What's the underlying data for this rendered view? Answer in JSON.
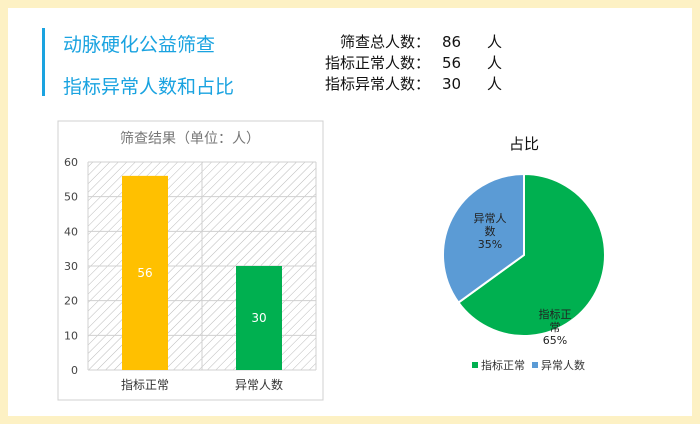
{
  "header": {
    "title": "动脉硬化公益筛查",
    "subtitle": "指标异常人数和占比"
  },
  "stats": [
    {
      "label": "筛查总人数：",
      "value": "86",
      "unit": "人"
    },
    {
      "label": "指标正常人数：",
      "value": "56",
      "unit": "人"
    },
    {
      "label": "指标异常人数：",
      "value": "30",
      "unit": "人"
    }
  ],
  "chart_data": [
    {
      "type": "bar",
      "title": "筛查结果（单位：人）",
      "categories": [
        "指标正常",
        "异常人数"
      ],
      "values": [
        56,
        30
      ],
      "data_labels": [
        "56",
        "30"
      ],
      "colors": [
        "#ffc000",
        "#00b050"
      ],
      "ylim": [
        0,
        60
      ],
      "yticks": [
        "0",
        "10",
        "20",
        "30",
        "40",
        "50",
        "60"
      ],
      "grid": true,
      "background": "diagonal-hatch"
    },
    {
      "type": "pie",
      "title": "占比",
      "categories": [
        "指标正常",
        "异常人数"
      ],
      "values": [
        65,
        35
      ],
      "data_labels": [
        [
          "指标正",
          "常",
          "65%"
        ],
        [
          "异常人",
          "数",
          "35%"
        ]
      ],
      "colors": [
        "#00b050",
        "#5b9bd5"
      ],
      "legend": "bottom"
    }
  ]
}
